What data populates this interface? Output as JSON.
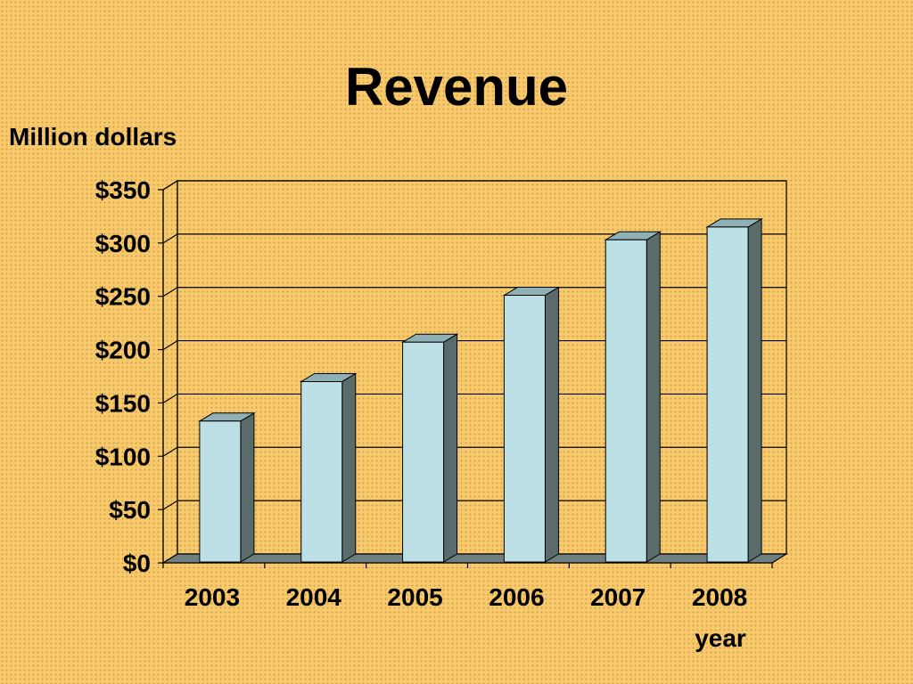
{
  "chart_data": {
    "type": "bar",
    "title": "Revenue",
    "ylabel": "Million dollars",
    "xlabel": "year",
    "categories": [
      "2003",
      "2004",
      "2005",
      "2006",
      "2007",
      "2008"
    ],
    "values": [
      133,
      170,
      207,
      251,
      303,
      315
    ],
    "ylim": [
      0,
      350
    ],
    "yticks": [
      0,
      50,
      100,
      150,
      200,
      250,
      300,
      350
    ],
    "ytick_labels": [
      "$0",
      "$50",
      "$100",
      "$150",
      "$200",
      "$250",
      "$300",
      "$350"
    ],
    "grid": true,
    "three_d": true,
    "colors": {
      "bar_front": "#bde0e6",
      "bar_side": "#5a6b6b",
      "bar_top": "#8fb0b4",
      "floor": "#6f7f7f",
      "background": "#f7c96b"
    }
  }
}
